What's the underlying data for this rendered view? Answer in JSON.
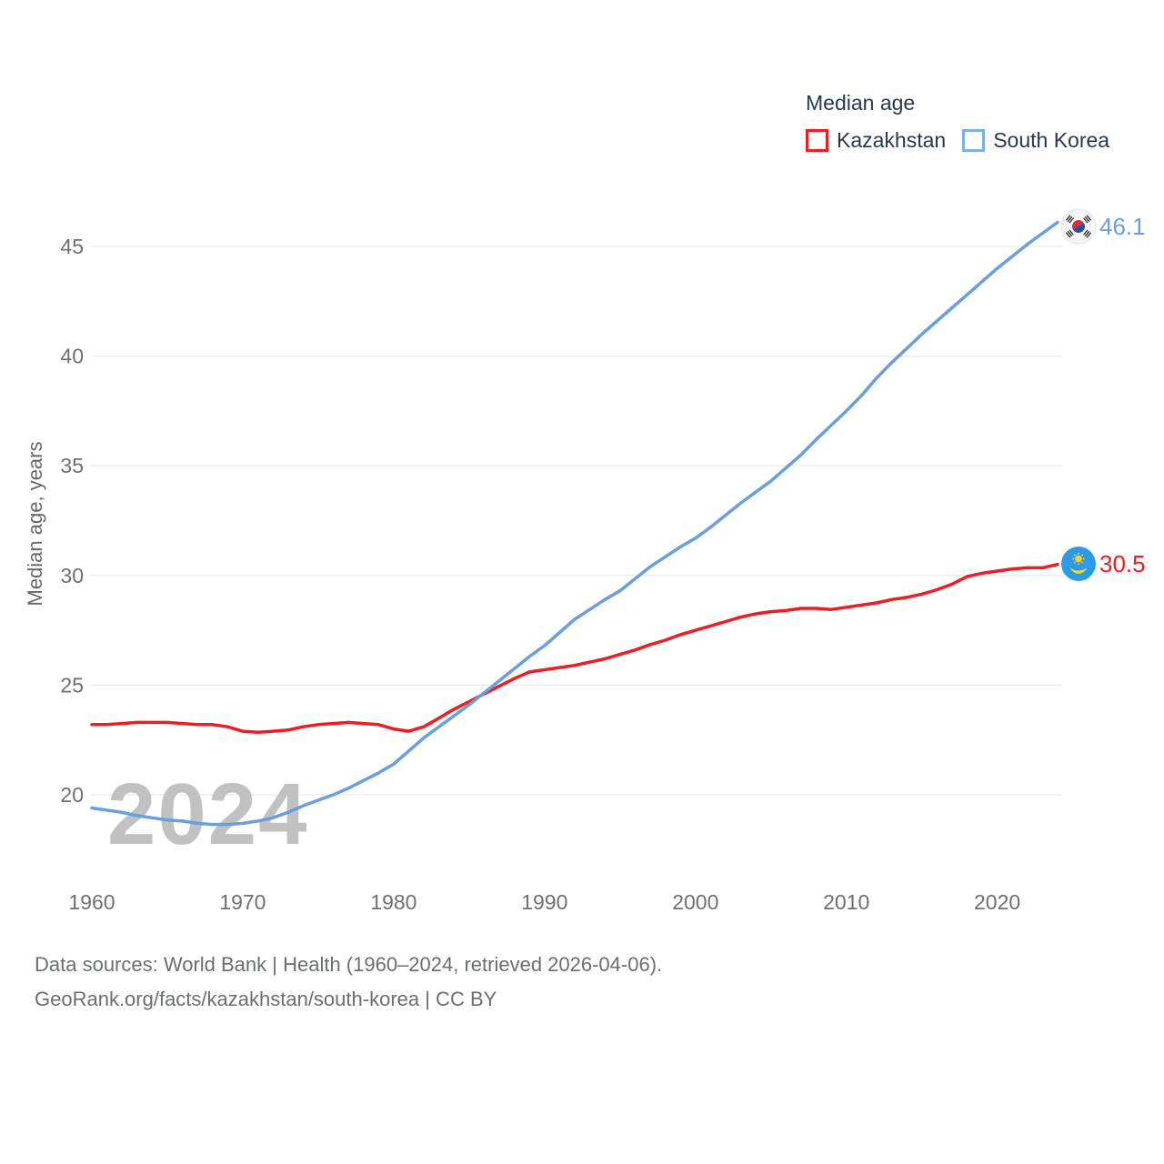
{
  "legend": {
    "title": "Median age",
    "series": [
      {
        "label": "Kazakhstan",
        "color": "#ee1d23"
      },
      {
        "label": "South Korea",
        "color": "#689fdc"
      }
    ]
  },
  "y_axis": {
    "title": "Median age, years",
    "ticks": [
      20,
      25,
      30,
      35,
      40,
      45
    ]
  },
  "x_axis": {
    "ticks": [
      1960,
      1970,
      1980,
      1990,
      2000,
      2010,
      2020
    ]
  },
  "end_labels": [
    {
      "series": "South Korea",
      "value": "46.1",
      "flag": "south-korea-flag-icon",
      "color": "#689fdc"
    },
    {
      "series": "Kazakhstan",
      "value": "30.5",
      "flag": "kazakhstan-flag-icon",
      "color": "#ee1d23"
    }
  ],
  "watermark": "2024",
  "footer": {
    "line1": "Data sources: World Bank | Health (1960–2024, retrieved 2026-04-06).",
    "line2": "GeoRank.org/facts/kazakhstan/south-korea | CC BY"
  },
  "chart_data": {
    "type": "line",
    "title": "Median age",
    "xlabel": "",
    "ylabel": "Median age, years",
    "x_range": [
      1960,
      2024
    ],
    "ylim": [
      17.5,
      47.5
    ],
    "grid": "horizontal",
    "legend_position": "top-right",
    "x": [
      1960,
      1961,
      1962,
      1963,
      1964,
      1965,
      1966,
      1967,
      1968,
      1969,
      1970,
      1971,
      1972,
      1973,
      1974,
      1975,
      1976,
      1977,
      1978,
      1979,
      1980,
      1981,
      1982,
      1983,
      1984,
      1985,
      1986,
      1987,
      1988,
      1989,
      1990,
      1991,
      1992,
      1993,
      1994,
      1995,
      1996,
      1997,
      1998,
      1999,
      2000,
      2001,
      2002,
      2003,
      2004,
      2005,
      2006,
      2007,
      2008,
      2009,
      2010,
      2011,
      2012,
      2013,
      2014,
      2015,
      2016,
      2017,
      2018,
      2019,
      2020,
      2021,
      2022,
      2023,
      2024
    ],
    "series": [
      {
        "name": "Kazakhstan",
        "color": "#ee1d23",
        "final_value": 30.5,
        "values": [
          23.2,
          23.2,
          23.25,
          23.3,
          23.3,
          23.3,
          23.25,
          23.2,
          23.2,
          23.1,
          22.9,
          22.85,
          22.9,
          22.95,
          23.1,
          23.2,
          23.25,
          23.3,
          23.25,
          23.2,
          23.0,
          22.9,
          23.1,
          23.5,
          23.9,
          24.25,
          24.6,
          24.95,
          25.3,
          25.6,
          25.7,
          25.8,
          25.9,
          26.05,
          26.2,
          26.4,
          26.6,
          26.85,
          27.05,
          27.3,
          27.5,
          27.7,
          27.9,
          28.1,
          28.25,
          28.35,
          28.4,
          28.5,
          28.5,
          28.45,
          28.55,
          28.65,
          28.75,
          28.9,
          29.0,
          29.15,
          29.35,
          29.6,
          29.95,
          30.1,
          30.2,
          30.3,
          30.35,
          30.35,
          30.5
        ]
      },
      {
        "name": "South Korea",
        "color": "#689fdc",
        "final_value": 46.1,
        "values": [
          19.4,
          19.3,
          19.2,
          19.05,
          18.95,
          18.85,
          18.8,
          18.7,
          18.65,
          18.65,
          18.7,
          18.8,
          18.95,
          19.2,
          19.5,
          19.75,
          20.0,
          20.3,
          20.65,
          21.0,
          21.4,
          22.0,
          22.6,
          23.1,
          23.6,
          24.1,
          24.65,
          25.2,
          25.75,
          26.3,
          26.8,
          27.4,
          28.0,
          28.45,
          28.9,
          29.3,
          29.85,
          30.4,
          30.85,
          31.3,
          31.7,
          32.2,
          32.75,
          33.3,
          33.8,
          34.3,
          34.9,
          35.5,
          36.2,
          36.85,
          37.5,
          38.2,
          39.0,
          39.7,
          40.35,
          41.0,
          41.6,
          42.2,
          42.8,
          43.4,
          44.0,
          44.55,
          45.1,
          45.6,
          46.1
        ]
      }
    ]
  }
}
